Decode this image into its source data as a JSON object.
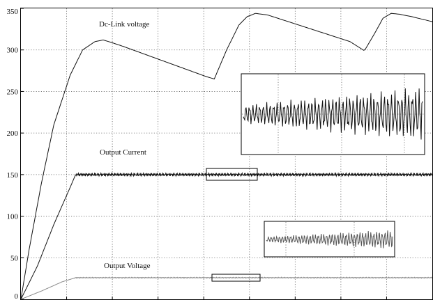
{
  "chart_data": {
    "type": "line",
    "title": "",
    "xlabel": "",
    "ylabel": "",
    "ylim": [
      0,
      350
    ],
    "xlim": [
      0,
      1
    ],
    "yticks": [
      0,
      50,
      100,
      150,
      200,
      250,
      300,
      350
    ],
    "ytick_labels": [
      "0",
      "50",
      "100",
      "150",
      "200",
      "250",
      "300",
      "350"
    ],
    "xtick_count": 9,
    "grid": true,
    "annotations": {
      "dc_link": "Dc-Link voltage",
      "output_current": "Output Current",
      "output_voltage": "Output Voltage"
    },
    "series": [
      {
        "name": "Dc-Link voltage",
        "color": "#111111",
        "x": [
          0,
          0.02,
          0.05,
          0.08,
          0.12,
          0.15,
          0.18,
          0.2,
          0.22,
          0.25,
          0.3,
          0.35,
          0.4,
          0.45,
          0.47,
          0.5,
          0.53,
          0.55,
          0.57,
          0.6,
          0.65,
          0.7,
          0.75,
          0.8,
          0.835,
          0.86,
          0.88,
          0.9,
          0.92,
          0.95,
          1.0
        ],
        "y": [
          0,
          60,
          140,
          210,
          270,
          300,
          310,
          312,
          309,
          304,
          295,
          286,
          277,
          268,
          265,
          300,
          330,
          340,
          344,
          342,
          334,
          326,
          318,
          310,
          299,
          320,
          338,
          344,
          343,
          340,
          334
        ]
      },
      {
        "name": "Output Current",
        "color": "#111111",
        "x": [
          0,
          0.04,
          0.08,
          0.12,
          0.133,
          0.2,
          0.3,
          0.4,
          0.5,
          0.6,
          0.7,
          0.8,
          0.9,
          1.0
        ],
        "y": [
          0,
          40,
          90,
          135,
          150,
          150,
          150,
          150,
          150,
          150,
          150,
          150,
          150,
          150
        ],
        "ripple_amplitude": 2
      },
      {
        "name": "Output Voltage",
        "color": "#888888",
        "x": [
          0,
          0.05,
          0.1,
          0.133,
          0.2,
          0.4,
          0.6,
          0.8,
          1.0
        ],
        "y": [
          0,
          10,
          21,
          26,
          26,
          26,
          26,
          26,
          26
        ],
        "ripple_amplitude": 0.6
      }
    ],
    "zoom_boxes": [
      {
        "series": "Output Current",
        "x_range": [
          0.45,
          0.57
        ],
        "y_range": [
          144,
          157
        ]
      },
      {
        "series": "Output Voltage",
        "x_range": [
          0.46,
          0.58
        ],
        "y_range": [
          23,
          31
        ]
      }
    ]
  }
}
